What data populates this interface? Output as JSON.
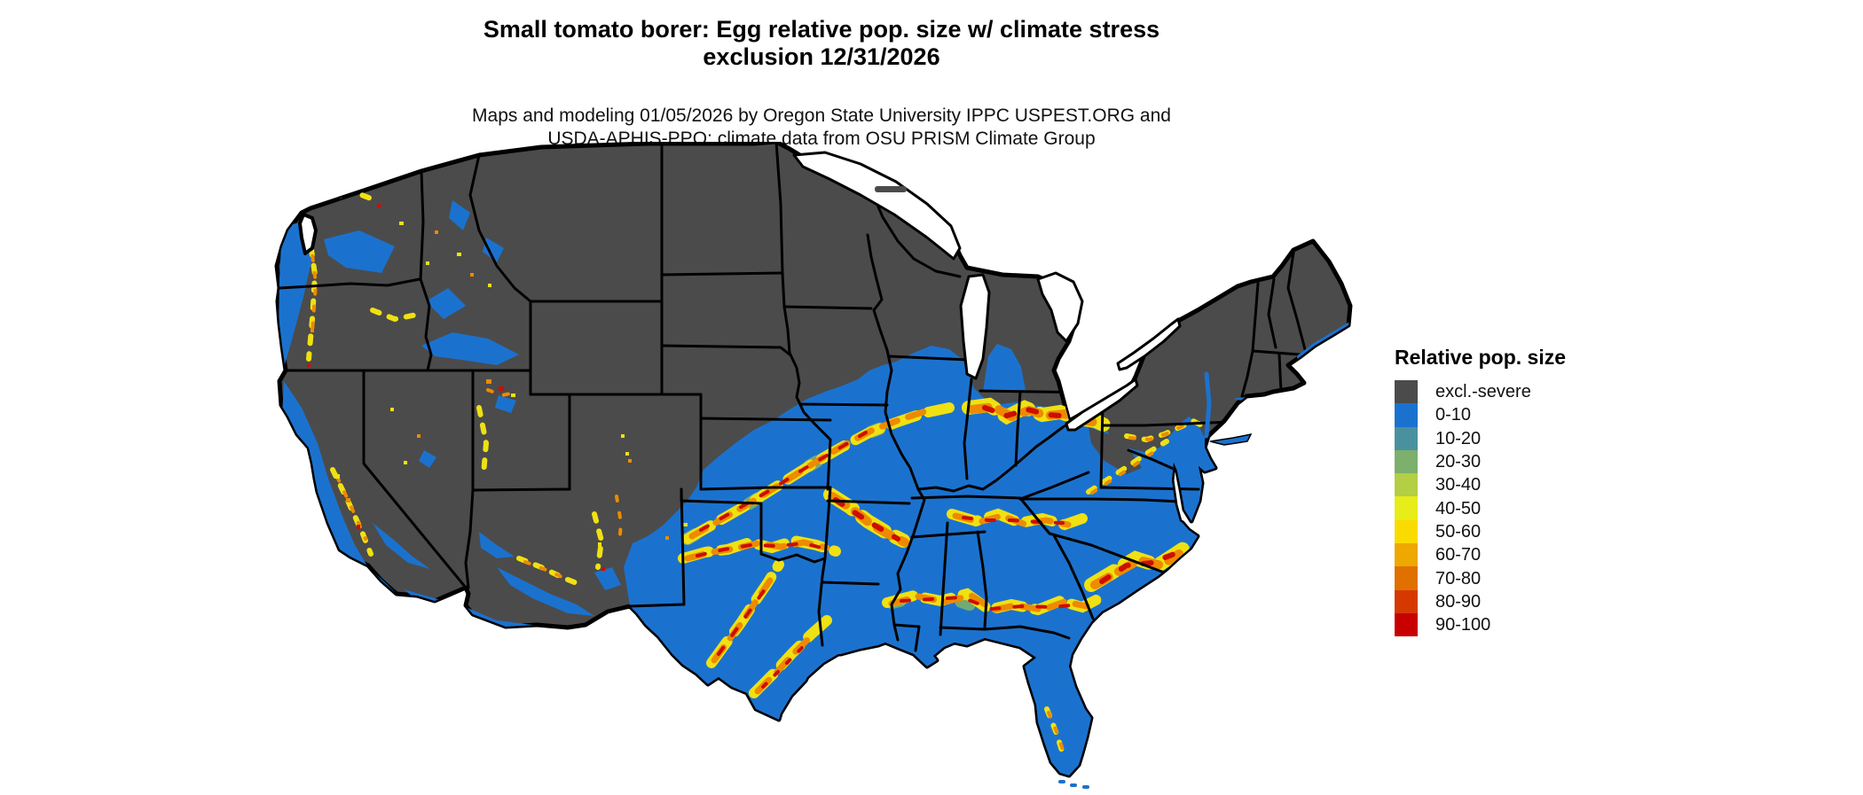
{
  "title": {
    "line1": "Small tomato borer: Egg relative pop. size w/ climate stress",
    "line2": "exclusion 12/31/2026"
  },
  "subtitle": {
    "line1": "Maps and modeling 01/05/2026 by Oregon State University IPPC USPEST.ORG and",
    "line2": "USDA-APHIS-PPQ; climate data from OSU PRISM Climate Group"
  },
  "legend": {
    "title": "Relative pop. size",
    "classes": [
      {
        "label": "excl.-severe",
        "color": "#4B4B4B"
      },
      {
        "label": "0-10",
        "color": "#1B72CE"
      },
      {
        "label": "10-20",
        "color": "#4A91A0"
      },
      {
        "label": "20-30",
        "color": "#7CB06C"
      },
      {
        "label": "30-40",
        "color": "#B3CF43"
      },
      {
        "label": "40-50",
        "color": "#E7ED19"
      },
      {
        "label": "50-60",
        "color": "#FADB00"
      },
      {
        "label": "60-70",
        "color": "#EEA800"
      },
      {
        "label": "70-80",
        "color": "#E07000"
      },
      {
        "label": "80-90",
        "color": "#D63900"
      },
      {
        "label": "90-100",
        "color": "#C80000"
      }
    ]
  },
  "map": {
    "region": "Continental United States",
    "excluded_color": "#4B4B4B",
    "low_pop_color": "#1B72CE",
    "water_color": "#FFFFFF",
    "border_color": "#000000"
  }
}
